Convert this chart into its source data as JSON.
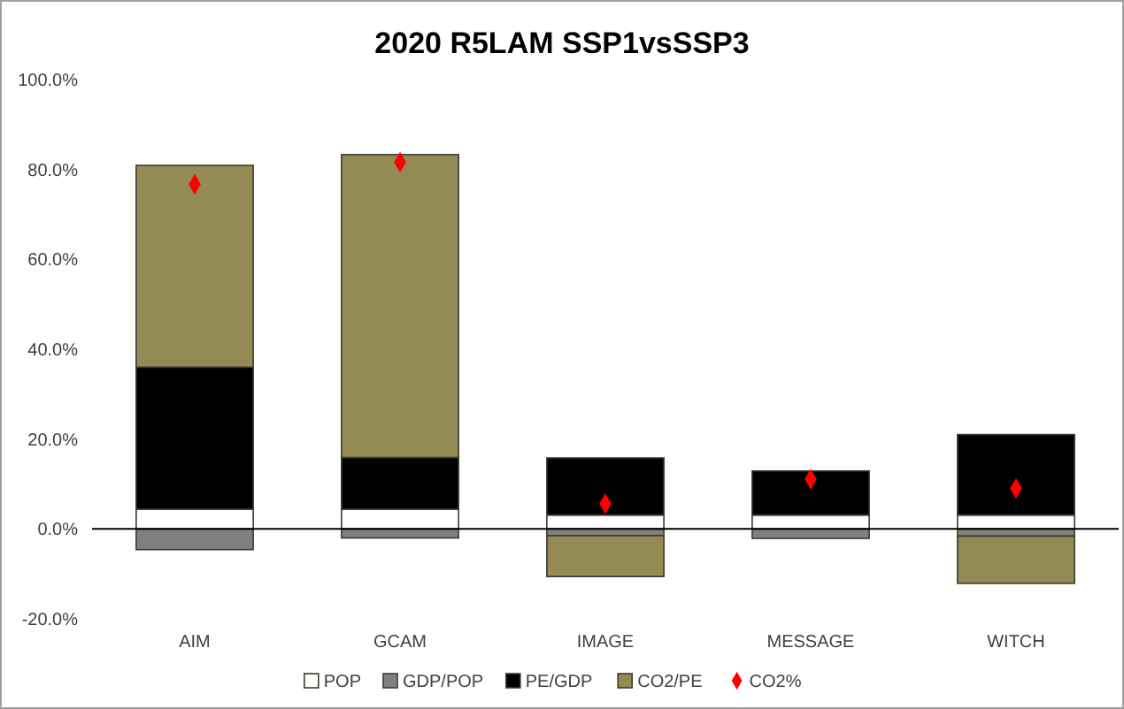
{
  "chart_data": {
    "type": "bar",
    "title": "2020 R5LAM SSP1vsSSP3",
    "categories": [
      "AIM",
      "GCAM",
      "IMAGE",
      "MESSAGE",
      "WITCH"
    ],
    "stacked": true,
    "series": [
      {
        "name": "POP",
        "color": "#ffffff",
        "values": [
          4.4,
          4.4,
          3.1,
          3.1,
          3.1
        ]
      },
      {
        "name": "GDP/POP",
        "color": "#808080",
        "values": [
          -4.6,
          -2.0,
          -1.5,
          -2.1,
          -1.6
        ]
      },
      {
        "name": "PE/GDP",
        "color": "#000000",
        "values": [
          31.6,
          11.5,
          12.7,
          9.8,
          17.9
        ]
      },
      {
        "name": "CO2/PE",
        "color": "#948a54",
        "values": [
          44.9,
          67.4,
          -9.1,
          0,
          -10.5
        ]
      },
      {
        "name": "CO2%",
        "type": "scatter",
        "color": "#ff0000",
        "marker": "diamond",
        "x": [
          "AIM",
          "GCAM",
          "IMAGE",
          "MESSAGE",
          "WITCH"
        ],
        "values": [
          76.7,
          81.6,
          5.6,
          11.1,
          9.0
        ]
      }
    ],
    "ylim": [
      -20,
      100
    ],
    "yticks": [
      {
        "value": -20,
        "label": "-20.0%"
      },
      {
        "value": 0,
        "label": "0.0%"
      },
      {
        "value": 20,
        "label": "20.0%"
      },
      {
        "value": 40,
        "label": "40.0%"
      },
      {
        "value": 60,
        "label": "60.0%"
      },
      {
        "value": 80,
        "label": "80.0%"
      },
      {
        "value": 100,
        "label": "100.0%"
      }
    ],
    "legend": "bottom"
  }
}
